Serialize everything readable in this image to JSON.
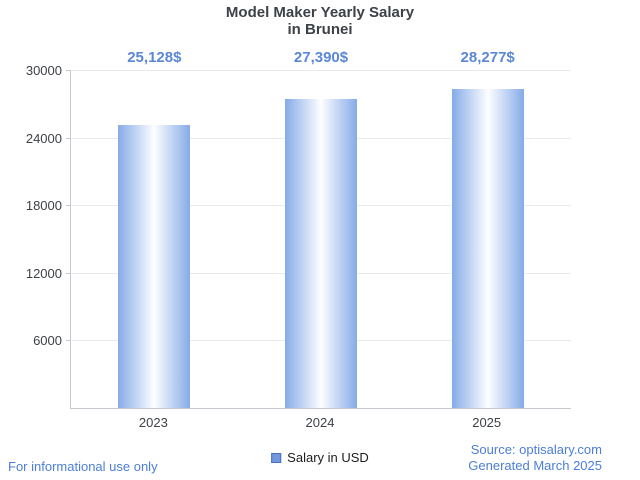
{
  "title": {
    "line1": "Model Maker Yearly Salary",
    "line2": "in Brunei"
  },
  "chart_data": {
    "type": "bar",
    "title": "Model Maker Yearly Salary in Brunei",
    "categories": [
      "2023",
      "2024",
      "2025"
    ],
    "series": [
      {
        "name": "Salary in USD",
        "values": [
          25128,
          27390,
          28277
        ]
      }
    ],
    "value_labels": [
      "25,128$",
      "27,390$",
      "28,277$"
    ],
    "xlabel": "",
    "ylabel": "",
    "ylim": [
      0,
      30000
    ],
    "yticks": [
      6000,
      12000,
      18000,
      24000,
      30000
    ],
    "grid": true,
    "legend_position": "bottom-center",
    "colors": {
      "bar_edge": "#86abe7",
      "bar_center": "#fdfeff",
      "value_label": "#5b87d7",
      "axis_text": "#3d4248",
      "gridline": "#e8eaed",
      "axis_line": "#c6cad0"
    }
  },
  "legend": {
    "label": "Salary in USD",
    "swatch_fill": "#7396dc",
    "swatch_border": "#4a6fc0"
  },
  "footer": {
    "disclaimer": "For informational use only",
    "source": "Source: optisalary.com",
    "generated": "Generated March 2025",
    "link_color": "#4c7ed9"
  }
}
